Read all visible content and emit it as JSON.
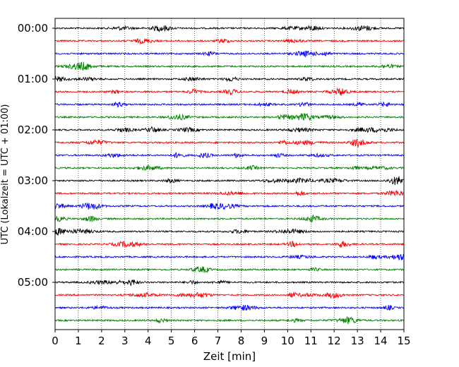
{
  "chart_data": {
    "type": "line",
    "title": "",
    "xlabel": "Zeit  [min]",
    "ylabel": "UTC (Lokalzeit = UTC + 01:00)",
    "xlim": [
      0,
      15
    ],
    "x_ticks": [
      0,
      1,
      2,
      3,
      4,
      5,
      6,
      7,
      8,
      9,
      10,
      11,
      12,
      13,
      14,
      15
    ],
    "y_tick_labels": [
      "00:00",
      "01:00",
      "02:00",
      "03:00",
      "04:00",
      "05:00"
    ],
    "trace_interval_minutes": 15,
    "trace_count": 24,
    "colors": [
      "#000000",
      "#ff0000",
      "#0000ff",
      "#008000"
    ],
    "vertical_grid": "dotted",
    "legend": "none"
  }
}
